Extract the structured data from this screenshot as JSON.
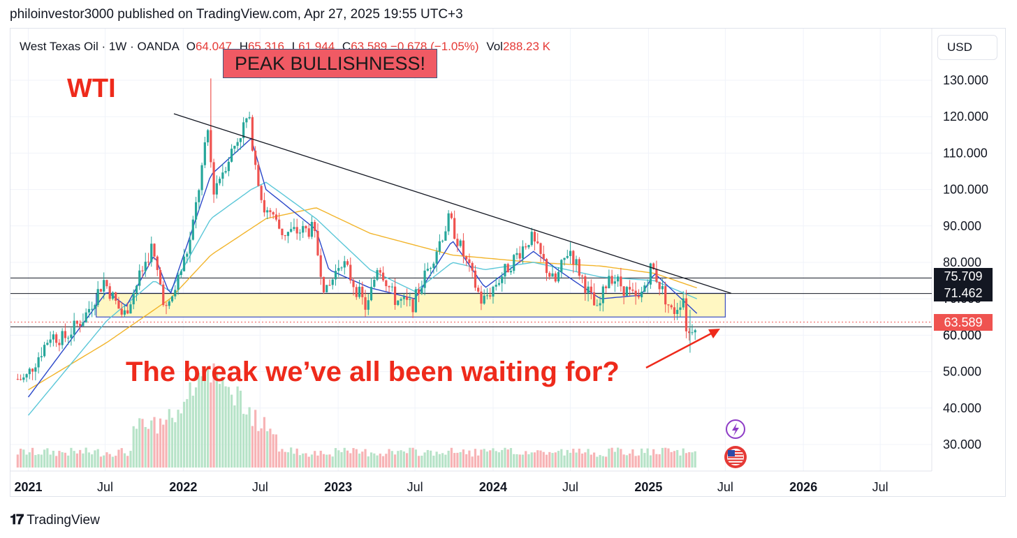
{
  "header": {
    "text": "philoinvestor3000 published on TradingView.com, Apr 27, 2025 19:55 UTC+3"
  },
  "legend": {
    "symbol": "West Texas Oil · 1W · OANDA",
    "o_label": "O",
    "o_value": "64.047",
    "h_label": "H",
    "h_value": "65.316",
    "l_label": "L",
    "l_value": "61.944",
    "c_label": "C",
    "c_value": "63.589",
    "change": "−0.678 (−1.05%)",
    "vol_label": "Vol",
    "vol_value": "288.23 K"
  },
  "currency": "USD",
  "annotations": {
    "peak": "PEAK BULLISHNESS!",
    "wti": "WTI",
    "question": "The break we’ve all been waiting for?"
  },
  "price_tags": {
    "level_high": "75.709",
    "level_low": "71.462",
    "last": "63.589",
    "hidden_left": "70.000",
    "hidden_right": "60.000"
  },
  "footer": {
    "brand": "TradingView",
    "logo": "tv-logo"
  },
  "colors": {
    "up": "#26a69a",
    "down": "#ef5350",
    "ma_fast": "#2a47c9",
    "ma_mid": "#5bc7d8",
    "ma_slow": "#f2b42a",
    "zone_fill": "#fff7c2",
    "zone_border": "#3a4fc0",
    "annotation": "#ee2a1b",
    "peak_box": "#f05a64",
    "lightning": "#8e3cc6",
    "flag_badge": "#e53935"
  },
  "icons": {
    "event": "lightning-icon",
    "country": "us-flag-icon"
  },
  "chart_data": {
    "type": "candlestick",
    "timeframe": "1W",
    "y_axis": {
      "ticks": [
        "30.000",
        "40.000",
        "50.000",
        "60.000",
        "70.000",
        "80.000",
        "90.000",
        "100.000",
        "110.000",
        "120.000",
        "130.000"
      ],
      "range": [
        24,
        135
      ]
    },
    "x_axis": {
      "ticks": [
        "2021",
        "Jul",
        "2022",
        "Jul",
        "2023",
        "Jul",
        "2024",
        "Jul",
        "2025",
        "Jul",
        "2026",
        "Jul"
      ],
      "bold": [
        "2021",
        "2022",
        "2023",
        "2024",
        "2025",
        "2026"
      ]
    },
    "path": [
      [
        "2021-01-01",
        48
      ],
      [
        "2021-03-01",
        60
      ],
      [
        "2021-04-01",
        59
      ],
      [
        "2021-05-20",
        65
      ],
      [
        "2021-07-05",
        75
      ],
      [
        "2021-08-20",
        65
      ],
      [
        "2021-10-25",
        84
      ],
      [
        "2021-12-01",
        66
      ],
      [
        "2022-01-25",
        86
      ],
      [
        "2022-03-07",
        116
      ],
      [
        "2022-03-20",
        100
      ],
      [
        "2022-06-10",
        120
      ],
      [
        "2022-07-15",
        95
      ],
      [
        "2022-09-01",
        88
      ],
      [
        "2022-11-10",
        89
      ],
      [
        "2022-12-10",
        71
      ],
      [
        "2023-01-15",
        81
      ],
      [
        "2023-03-17",
        67
      ],
      [
        "2023-04-12",
        80
      ],
      [
        "2023-05-20",
        70
      ],
      [
        "2023-07-01",
        68
      ],
      [
        "2023-09-27",
        92
      ],
      [
        "2023-10-20",
        85
      ],
      [
        "2023-12-13",
        69
      ],
      [
        "2024-02-01",
        77
      ],
      [
        "2024-04-05",
        87
      ],
      [
        "2024-06-01",
        74
      ],
      [
        "2024-07-05",
        84
      ],
      [
        "2024-09-10",
        66
      ],
      [
        "2024-10-07",
        77
      ],
      [
        "2024-12-15",
        69
      ],
      [
        "2025-01-15",
        79
      ],
      [
        "2025-03-05",
        66
      ],
      [
        "2025-04-02",
        71
      ],
      [
        "2025-04-09",
        59
      ],
      [
        "2025-04-25",
        63.589
      ]
    ],
    "moving_averages": {
      "fast": [
        [
          "2021-01-01",
          43
        ],
        [
          "2021-07-05",
          72
        ],
        [
          "2021-08-20",
          68
        ],
        [
          "2021-10-25",
          82
        ],
        [
          "2021-12-01",
          71
        ],
        [
          "2022-03-07",
          104
        ],
        [
          "2022-06-10",
          114
        ],
        [
          "2022-07-15",
          100
        ],
        [
          "2022-11-10",
          89
        ],
        [
          "2022-12-10",
          78
        ],
        [
          "2023-03-17",
          73
        ],
        [
          "2023-07-01",
          70
        ],
        [
          "2023-09-27",
          86
        ],
        [
          "2023-12-13",
          73
        ],
        [
          "2024-04-05",
          83
        ],
        [
          "2024-06-01",
          78
        ],
        [
          "2024-09-10",
          70
        ],
        [
          "2024-12-15",
          71
        ],
        [
          "2025-01-15",
          77
        ],
        [
          "2025-04-25",
          66
        ]
      ],
      "mid": [
        [
          "2021-01-01",
          38
        ],
        [
          "2021-07-05",
          64
        ],
        [
          "2021-10-25",
          75
        ],
        [
          "2021-12-01",
          72
        ],
        [
          "2022-03-07",
          92
        ],
        [
          "2022-06-10",
          100
        ],
        [
          "2022-07-15",
          102
        ],
        [
          "2022-11-10",
          92
        ],
        [
          "2023-03-17",
          78
        ],
        [
          "2023-07-01",
          72
        ],
        [
          "2023-09-27",
          80
        ],
        [
          "2023-12-13",
          78
        ],
        [
          "2024-04-05",
          80
        ],
        [
          "2024-09-10",
          76
        ],
        [
          "2025-01-15",
          75
        ],
        [
          "2025-04-25",
          70
        ]
      ],
      "slow": [
        [
          "2021-01-01",
          45
        ],
        [
          "2021-07-05",
          58
        ],
        [
          "2021-12-01",
          70
        ],
        [
          "2022-03-07",
          82
        ],
        [
          "2022-07-15",
          92
        ],
        [
          "2022-11-10",
          95
        ],
        [
          "2023-03-17",
          88
        ],
        [
          "2023-09-27",
          82
        ],
        [
          "2024-04-05",
          80
        ],
        [
          "2024-09-10",
          79
        ],
        [
          "2025-01-15",
          77
        ],
        [
          "2025-04-25",
          73
        ]
      ]
    },
    "levels": [
      75.709,
      71.462,
      63.589,
      62.3
    ],
    "support_zone": {
      "top": 71.5,
      "bottom": 65.0,
      "from": "2021-06-10",
      "to": "2025-07-01"
    },
    "trendline": [
      [
        "2021-12-10",
        120.8
      ],
      [
        "2025-07-15",
        71.5
      ]
    ],
    "peak_spike": [
      "2022-03-07",
      130.5
    ],
    "volume": {
      "max_relative": 1.0,
      "peak_date": "2022-03-07"
    }
  }
}
